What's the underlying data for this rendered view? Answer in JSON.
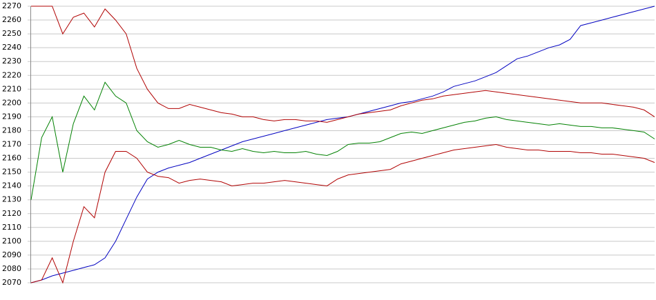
{
  "chart_data": {
    "type": "line",
    "categories": [
      null,
      null,
      null,
      null,
      null,
      null,
      null,
      null,
      null,
      null,
      null,
      null,
      null,
      null,
      null,
      null,
      null,
      null,
      null,
      null,
      null,
      null,
      null,
      null,
      null,
      null,
      null,
      null,
      null,
      null,
      null,
      null,
      null,
      null,
      null,
      null,
      null,
      null,
      null,
      null,
      null,
      null,
      null,
      null,
      null,
      null,
      null,
      null,
      null,
      null,
      null,
      null,
      null,
      null,
      null,
      null,
      null,
      null,
      null,
      null
    ],
    "series": [
      {
        "color": "#0000c0",
        "values": [
          2070,
          2072,
          2075,
          2077,
          2079,
          2081,
          2083,
          2088,
          2100,
          2116,
          2132,
          2145,
          2150,
          2153,
          2155,
          2157,
          2160,
          2163,
          2166,
          2169,
          2172,
          2174,
          2176,
          2178,
          2180,
          2182,
          2184,
          2186,
          2188,
          2189,
          2190,
          2192,
          2194,
          2196,
          2198,
          2200,
          2201,
          2203,
          2205,
          2208,
          2212,
          2214,
          2216,
          2219,
          2222,
          2227,
          2232,
          2234,
          2237,
          2240,
          2242,
          2246,
          2256,
          2258,
          2260,
          2262,
          2264,
          2266,
          2268,
          2270
        ]
      },
      {
        "color": "#008000",
        "values": [
          2130,
          2175,
          2190,
          2150,
          2185,
          2205,
          2195,
          2215,
          2205,
          2200,
          2180,
          2172,
          2168,
          2170,
          2173,
          2170,
          2168,
          2168,
          2166,
          2165,
          2167,
          2165,
          2164,
          2165,
          2164,
          2164,
          2165,
          2163,
          2162,
          2165,
          2170,
          2171,
          2171,
          2172,
          2175,
          2178,
          2179,
          2178,
          2180,
          2182,
          2184,
          2186,
          2187,
          2189,
          2190,
          2188,
          2187,
          2186,
          2185,
          2184,
          2185,
          2184,
          2183,
          2183,
          2182,
          2182,
          2181,
          2180,
          2179,
          2174
        ]
      },
      {
        "color": "#b00000",
        "values": [
          2270,
          2270,
          2270,
          2250,
          2262,
          2265,
          2255,
          2268,
          2260,
          2250,
          2225,
          2210,
          2200,
          2196,
          2196,
          2199,
          2197,
          2195,
          2193,
          2192,
          2190,
          2190,
          2188,
          2187,
          2188,
          2188,
          2187,
          2187,
          2186,
          2188,
          2190,
          2192,
          2193,
          2194,
          2195,
          2198,
          2200,
          2202,
          2203,
          2205,
          2206,
          2207,
          2208,
          2209,
          2208,
          2207,
          2206,
          2205,
          2204,
          2203,
          2202,
          2201,
          2200,
          2200,
          2200,
          2199,
          2198,
          2197,
          2195,
          2190
        ]
      },
      {
        "color": "#b00000",
        "values": [
          2070,
          2072,
          2088,
          2070,
          2100,
          2125,
          2117,
          2150,
          2165,
          2165,
          2160,
          2150,
          2147,
          2146,
          2142,
          2144,
          2145,
          2144,
          2143,
          2140,
          2141,
          2142,
          2142,
          2143,
          2144,
          2143,
          2142,
          2141,
          2140,
          2145,
          2148,
          2149,
          2150,
          2151,
          2152,
          2156,
          2158,
          2160,
          2162,
          2164,
          2166,
          2167,
          2168,
          2169,
          2170,
          2168,
          2167,
          2166,
          2166,
          2165,
          2165,
          2165,
          2164,
          2164,
          2163,
          2163,
          2162,
          2161,
          2160,
          2157
        ]
      }
    ],
    "ylim": [
      2070,
      2270
    ],
    "yticks": [
      2070,
      2080,
      2090,
      2100,
      2110,
      2120,
      2130,
      2140,
      2150,
      2160,
      2170,
      2180,
      2190,
      2200,
      2210,
      2220,
      2230,
      2240,
      2250,
      2260,
      2270
    ],
    "grid": true
  }
}
